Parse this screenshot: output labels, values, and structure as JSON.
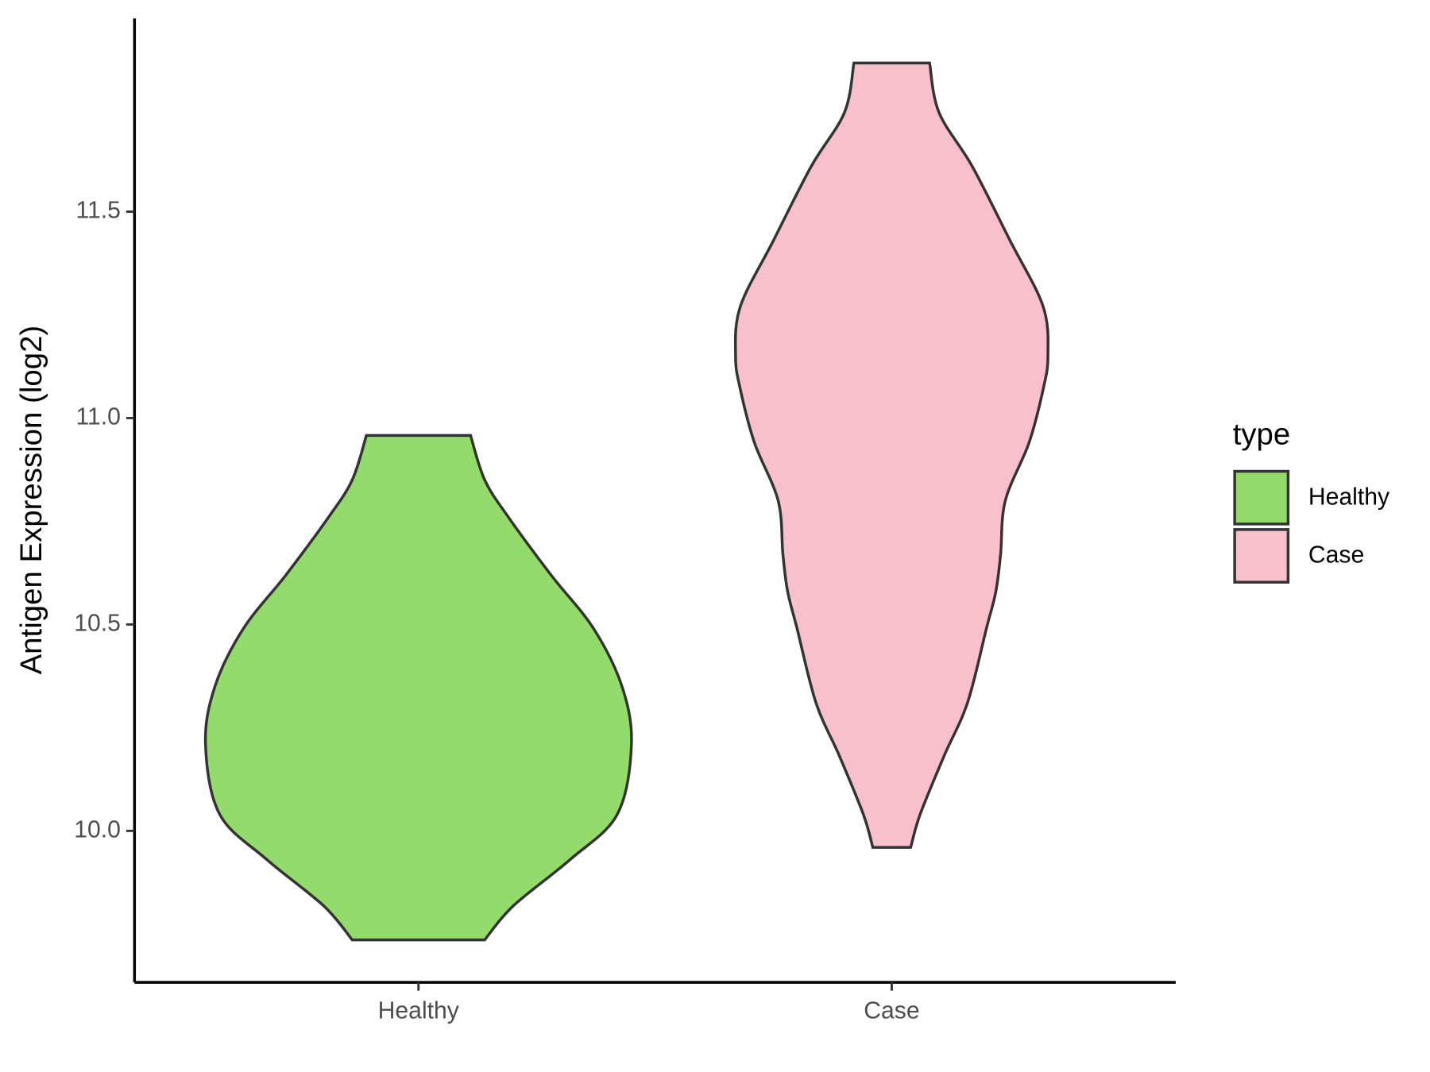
{
  "chart_data": {
    "type": "violin",
    "y_label": "Antigen Expression (log2)",
    "categories": [
      "Healthy",
      "Case"
    ],
    "legend_title": "type",
    "legend_position": "right",
    "series": [
      {
        "name": "Healthy",
        "color": "#93dc6b",
        "y": [
          9.736,
          9.818,
          9.93,
          10.04,
          10.21,
          10.35,
          10.49,
          10.62,
          10.76,
          10.85,
          10.958
        ],
        "width": [
          0.14,
          0.2,
          0.32,
          0.42,
          0.45,
          0.43,
          0.37,
          0.28,
          0.19,
          0.14,
          0.11
        ]
      },
      {
        "name": "Case",
        "color": "#f7c0cb",
        "y": [
          9.96,
          10.04,
          10.18,
          10.31,
          10.49,
          10.58,
          10.67,
          10.8,
          10.94,
          11.07,
          11.15,
          11.27,
          11.43,
          11.61,
          11.74,
          11.86
        ],
        "width": [
          0.04,
          0.06,
          0.11,
          0.16,
          0.2,
          0.22,
          0.23,
          0.24,
          0.29,
          0.32,
          0.33,
          0.32,
          0.25,
          0.17,
          0.1,
          0.08
        ]
      }
    ],
    "ylim": [
      9.633,
      11.968
    ],
    "yticks": [
      {
        "value": 10,
        "label": "10.0"
      },
      10.5,
      {
        "value": 11,
        "label": "11.0"
      },
      11.5
    ],
    "grid": false
  }
}
